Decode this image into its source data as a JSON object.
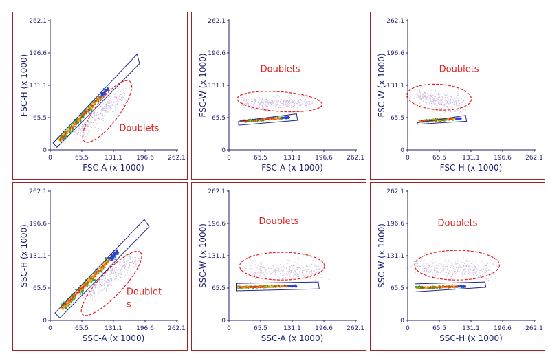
{
  "colors": {
    "frame": "#9b2323",
    "axis": "#1f1f70",
    "gate": "#1f2a8a",
    "doublet_gate": "#e02020",
    "doublet_text": "#e02020",
    "dots": "#c8b4dc"
  },
  "density_palette": [
    "#2da12d",
    "#f2d21b",
    "#f2912a",
    "#e8301c",
    "#2e44c8"
  ],
  "chart_data": [
    {
      "type": "scatter",
      "panel": "fsc-h-vs-fsc-a",
      "xlabel": "FSC-A (x 1000)",
      "ylabel": "FSC-H (x 1000)",
      "xlim": [
        0,
        262.1
      ],
      "ylim": [
        0,
        262.1
      ],
      "xticks": [
        "0",
        "65.5",
        "131.1",
        "196.6",
        "262.1"
      ],
      "yticks": [
        "0",
        "65.5",
        "131.1",
        "196.6",
        "262.1"
      ],
      "annotation": {
        "lines": [
          "Doublets"
        ],
        "x": 143,
        "y": 38
      },
      "singlet_gate": [
        [
          6,
          14
        ],
        [
          180,
          194
        ],
        [
          185,
          175
        ],
        [
          14,
          5
        ]
      ],
      "doublet_gate": {
        "cx": 118,
        "cy": 78,
        "rx": 78,
        "ry": 24,
        "angle": 53
      },
      "singlet_band": {
        "from": [
          20,
          20
        ],
        "to": [
          120,
          125
        ],
        "width": 8
      },
      "doublet_cloud": {
        "from": [
          55,
          35
        ],
        "to": [
          150,
          115
        ],
        "spread": 14
      }
    },
    {
      "type": "scatter",
      "panel": "fsc-w-vs-fsc-a",
      "xlabel": "FSC-A (x 1000)",
      "ylabel": "FSC-W (x 1000)",
      "xlim": [
        0,
        262.1
      ],
      "ylim": [
        0,
        262.1
      ],
      "xticks": [
        "0",
        "65.5",
        "131.1",
        "196.6",
        "262.1"
      ],
      "yticks": [
        "0",
        "65.5",
        "131.1",
        "196.6",
        "262.1"
      ],
      "annotation": {
        "lines": [
          "Doublets"
        ],
        "x": 65,
        "y": 158
      },
      "singlet_gate": [
        [
          20,
          58
        ],
        [
          140,
          73
        ],
        [
          142,
          60
        ],
        [
          20,
          50
        ]
      ],
      "doublet_gate": {
        "cx": 105,
        "cy": 98,
        "rx": 88,
        "ry": 20,
        "angle": -4
      },
      "singlet_band": {
        "from": [
          25,
          58
        ],
        "to": [
          125,
          66
        ],
        "width": 4
      },
      "doublet_cloud": {
        "from": [
          30,
          96
        ],
        "to": [
          165,
          96
        ],
        "spread": 10
      }
    },
    {
      "type": "scatter",
      "panel": "fsc-w-vs-fsc-h",
      "xlabel": "FSC-H (x 1000)",
      "ylabel": "FSC-W (x 1000)",
      "xlim": [
        0,
        262.1
      ],
      "ylim": [
        0,
        262.1
      ],
      "xticks": [
        "0",
        "65.5",
        "131.1",
        "196.6",
        "262.1"
      ],
      "yticks": [
        "0",
        "65.5",
        "131.1",
        "196.6",
        "262.1"
      ],
      "annotation": {
        "lines": [
          "Doublets"
        ],
        "x": 65,
        "y": 158
      },
      "singlet_gate": [
        [
          20,
          55
        ],
        [
          120,
          70
        ],
        [
          122,
          58
        ],
        [
          20,
          52
        ]
      ],
      "doublet_gate": {
        "cx": 65,
        "cy": 107,
        "rx": 67,
        "ry": 26,
        "angle": -4
      },
      "singlet_band": {
        "from": [
          25,
          58
        ],
        "to": [
          110,
          64
        ],
        "width": 4
      },
      "doublet_cloud": {
        "from": [
          20,
          110
        ],
        "to": [
          110,
          92
        ],
        "spread": 14
      }
    },
    {
      "type": "scatter",
      "panel": "ssc-h-vs-ssc-a",
      "xlabel": "SSC-A (x 1000)",
      "ylabel": "SSC-H (x 1000)",
      "xlim": [
        0,
        262.1
      ],
      "ylim": [
        0,
        262.1
      ],
      "annotation": {
        "lines": [
          "Doublet",
          "s"
        ],
        "x": 158,
        "y": 52
      },
      "xticks": [
        "0",
        "65.5",
        "131.1",
        "196.6",
        "262.1"
      ],
      "yticks": [
        "0",
        "65.5",
        "131.1",
        "196.6",
        "262.1"
      ],
      "singlet_gate": [
        [
          10,
          15
        ],
        [
          195,
          205
        ],
        [
          205,
          190
        ],
        [
          20,
          5
        ]
      ],
      "doublet_gate": {
        "cx": 127,
        "cy": 75,
        "rx": 88,
        "ry": 24,
        "angle": 47
      },
      "singlet_band": {
        "from": [
          25,
          25
        ],
        "to": [
          140,
          140
        ],
        "width": 10
      },
      "doublet_cloud": {
        "from": [
          65,
          45
        ],
        "to": [
          180,
          130
        ],
        "spread": 16
      }
    },
    {
      "type": "scatter",
      "panel": "ssc-w-vs-ssc-a",
      "xlabel": "SSC-A (x 1000)",
      "ylabel": "SSC-W (x 1000)",
      "xlim": [
        0,
        262.1
      ],
      "ylim": [
        0,
        262.1
      ],
      "xticks": [
        "0",
        "65.5",
        "131.1",
        "196.6",
        "262.1"
      ],
      "yticks": [
        "0",
        "65.5",
        "131.1",
        "196.6",
        "262.1"
      ],
      "annotation": {
        "lines": [
          "Doublets"
        ],
        "x": 62,
        "y": 195
      },
      "singlet_gate": [
        [
          15,
          75
        ],
        [
          185,
          78
        ],
        [
          187,
          64
        ],
        [
          15,
          60
        ]
      ],
      "doublet_gate": {
        "cx": 110,
        "cy": 110,
        "rx": 88,
        "ry": 28,
        "angle": 0
      },
      "singlet_band": {
        "from": [
          18,
          67
        ],
        "to": [
          140,
          70
        ],
        "width": 4
      },
      "doublet_cloud": {
        "from": [
          40,
          100
        ],
        "to": [
          190,
          100
        ],
        "spread": 18
      }
    },
    {
      "type": "scatter",
      "panel": "ssc-w-vs-ssc-h",
      "xlabel": "SSC-H (x 1000)",
      "ylabel": "SSC-W (x 1000)",
      "xlim": [
        0,
        262.1
      ],
      "ylim": [
        0,
        262.1
      ],
      "xticks": [
        "0",
        "65.5",
        "131.1",
        "196.6",
        "262.1"
      ],
      "yticks": [
        "0",
        "65.5",
        "131.1",
        "196.6",
        "262.1"
      ],
      "annotation": {
        "lines": [
          "Doublets"
        ],
        "x": 62,
        "y": 192
      },
      "singlet_gate": [
        [
          15,
          74
        ],
        [
          160,
          78
        ],
        [
          162,
          67
        ],
        [
          15,
          58
        ]
      ],
      "doublet_gate": {
        "cx": 102,
        "cy": 112,
        "rx": 88,
        "ry": 30,
        "angle": 0
      },
      "singlet_band": {
        "from": [
          18,
          66
        ],
        "to": [
          120,
          69
        ],
        "width": 4
      },
      "doublet_cloud": {
        "from": [
          20,
          110
        ],
        "to": [
          170,
          100
        ],
        "spread": 18
      }
    }
  ]
}
